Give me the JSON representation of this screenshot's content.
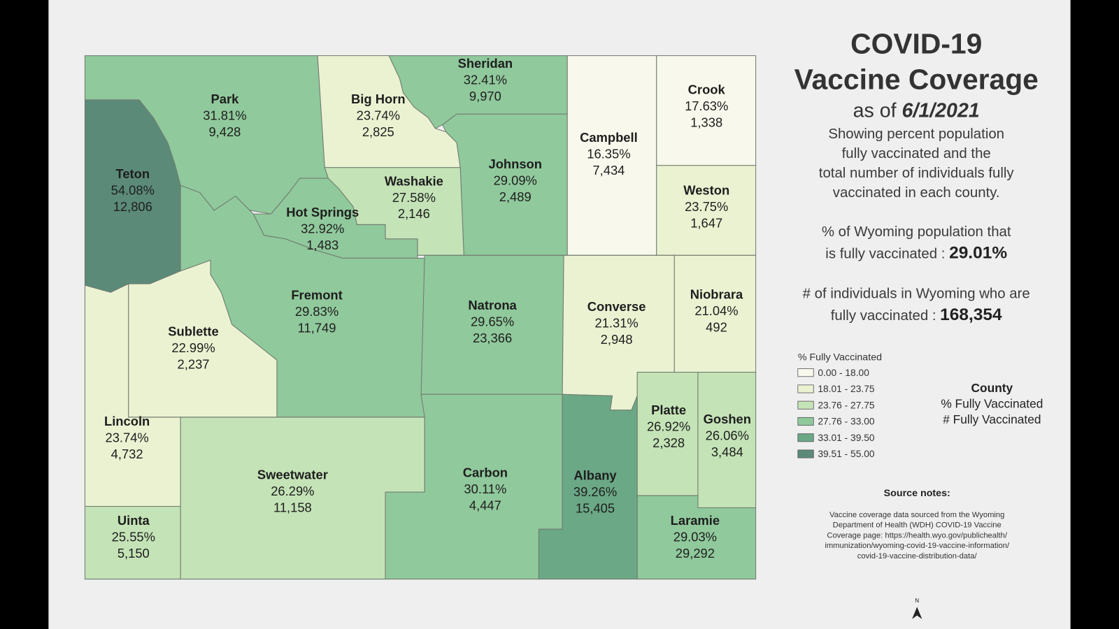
{
  "title": [
    "COVID-19",
    "Vaccine Coverage"
  ],
  "as_of": {
    "prefix": "as of ",
    "date": "6/1/2021"
  },
  "description": [
    "Showing percent population",
    "fully vaccinated and the",
    "total number of individuals fully",
    "vaccinated in each county."
  ],
  "stats": [
    {
      "line1": "% of Wyoming population that",
      "line2": "is fully vaccinated : ",
      "value": "29.01%"
    },
    {
      "line1": "# of individuals in Wyoming who are",
      "line2": "fully vaccinated : ",
      "value": "168,354"
    }
  ],
  "legend": {
    "title": "% Fully Vaccinated",
    "classes": [
      {
        "label": "0.00 - 18.00",
        "color": "#f8f8ec"
      },
      {
        "label": "18.01 - 23.75",
        "color": "#ebf2d2"
      },
      {
        "label": "23.76 - 27.75",
        "color": "#c4e3b7"
      },
      {
        "label": "27.76 - 33.00",
        "color": "#90c99c"
      },
      {
        "label": "33.01 - 39.50",
        "color": "#6ba886"
      },
      {
        "label": "39.51 - 55.00",
        "color": "#5b8a79"
      }
    ]
  },
  "key": [
    "County",
    "% Fully Vaccinated",
    "# Fully Vaccinated"
  ],
  "source": {
    "title": "Source notes:",
    "lines": [
      "Vaccine coverage data sourced from the Wyoming",
      "Department of Health (WDH) COVID-19 Vaccine",
      "Coverage page: https://health.wyo.gov/publichealth/",
      "immunization/wyoming-covid-19-vaccine-information/",
      "covid-19-vaccine-distribution-data/"
    ]
  },
  "north": "N",
  "counties": [
    {
      "name": "Teton",
      "percent": "54.08%",
      "count": "12,806",
      "color": "#5b8a79"
    },
    {
      "name": "Park",
      "percent": "31.81%",
      "count": "9,428",
      "color": "#90c99c"
    },
    {
      "name": "Big Horn",
      "percent": "23.74%",
      "count": "2,825",
      "color": "#ebf2d2"
    },
    {
      "name": "Sheridan",
      "percent": "32.41%",
      "count": "9,970",
      "color": "#90c99c"
    },
    {
      "name": "Johnson",
      "percent": "29.09%",
      "count": "2,489",
      "color": "#90c99c"
    },
    {
      "name": "Campbell",
      "percent": "16.35%",
      "count": "7,434",
      "color": "#f8f8ec"
    },
    {
      "name": "Crook",
      "percent": "17.63%",
      "count": "1,338",
      "color": "#f8f8ec"
    },
    {
      "name": "Weston",
      "percent": "23.75%",
      "count": "1,647",
      "color": "#ebf2d2"
    },
    {
      "name": "Washakie",
      "percent": "27.58%",
      "count": "2,146",
      "color": "#c4e3b7"
    },
    {
      "name": "Hot Springs",
      "percent": "32.92%",
      "count": "1,483",
      "color": "#90c99c"
    },
    {
      "name": "Fremont",
      "percent": "29.83%",
      "count": "11,749",
      "color": "#90c99c"
    },
    {
      "name": "Sublette",
      "percent": "22.99%",
      "count": "2,237",
      "color": "#ebf2d2"
    },
    {
      "name": "Lincoln",
      "percent": "23.74%",
      "count": "4,732",
      "color": "#ebf2d2"
    },
    {
      "name": "Uinta",
      "percent": "25.55%",
      "count": "5,150",
      "color": "#c4e3b7"
    },
    {
      "name": "Sweetwater",
      "percent": "26.29%",
      "count": "11,158",
      "color": "#c4e3b7"
    },
    {
      "name": "Natrona",
      "percent": "29.65%",
      "count": "23,366",
      "color": "#90c99c"
    },
    {
      "name": "Carbon",
      "percent": "30.11%",
      "count": "4,447",
      "color": "#90c99c"
    },
    {
      "name": "Converse",
      "percent": "21.31%",
      "count": "2,948",
      "color": "#ebf2d2"
    },
    {
      "name": "Niobrara",
      "percent": "21.04%",
      "count": "492",
      "color": "#ebf2d2"
    },
    {
      "name": "Albany",
      "percent": "39.26%",
      "count": "15,405",
      "color": "#6ba886"
    },
    {
      "name": "Platte",
      "percent": "26.92%",
      "count": "2,328",
      "color": "#c4e3b7"
    },
    {
      "name": "Goshen",
      "percent": "26.06%",
      "count": "3,484",
      "color": "#c4e3b7"
    },
    {
      "name": "Laramie",
      "percent": "29.03%",
      "count": "29,292",
      "color": "#90c99c"
    }
  ]
}
